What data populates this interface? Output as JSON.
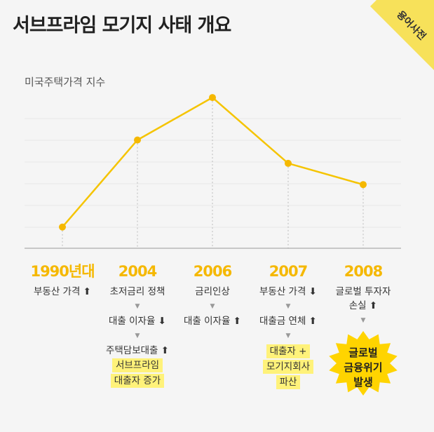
{
  "title": "서브프라임 모기지 사태 개요",
  "corner_tag": "용어사전",
  "colors": {
    "accent": "#f5c400",
    "year": "#f5b800",
    "highlight": "#fff27a",
    "background": "#f5f5f5"
  },
  "chart_data": {
    "type": "line",
    "ylabel": "미국주택가격 지수",
    "x": [
      "1990년대",
      "2004",
      "2006",
      "2007",
      "2008"
    ],
    "values": [
      1,
      5.1,
      7.1,
      4.0,
      3.0
    ],
    "ylim": [
      0,
      8
    ],
    "grid": true
  },
  "timeline": [
    {
      "year": "1990년대",
      "steps": [
        {
          "text": "부동산 가격 ⬆"
        }
      ]
    },
    {
      "year": "2004",
      "steps": [
        {
          "text": "초저금리 정책"
        },
        {
          "text": "대출 이자율 ⬇"
        },
        {
          "text": "주택담보대출 ⬆"
        }
      ],
      "highlights": [
        "서브프라임",
        "대출자 증가"
      ]
    },
    {
      "year": "2006",
      "steps": [
        {
          "text": "금리인상"
        },
        {
          "text": "대출 이자율 ⬆"
        }
      ]
    },
    {
      "year": "2007",
      "steps": [
        {
          "text": "부동산 가격 ⬇"
        },
        {
          "text": "대출금 연체 ⬆"
        }
      ],
      "highlights": [
        "대출자 +",
        "모기지회사",
        "파산"
      ]
    },
    {
      "year": "2008",
      "steps": [
        {
          "text": "글로벌 투자자"
        }
      ],
      "steps_tail": "손실 ⬆",
      "burst": [
        "글로벌",
        "금융위기",
        "발생"
      ]
    }
  ]
}
